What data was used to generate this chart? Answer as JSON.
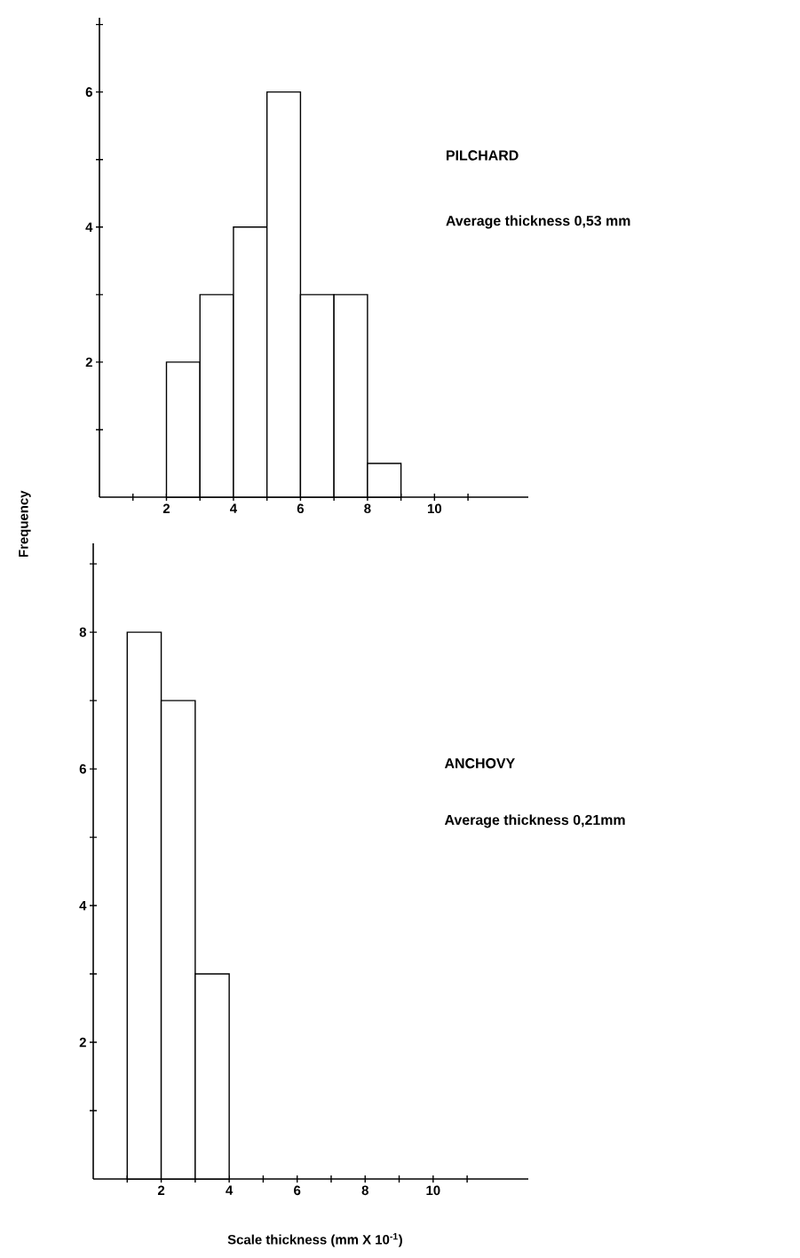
{
  "chart_data": [
    {
      "type": "histogram",
      "ylabel": "Frequency",
      "bins": [
        2,
        3,
        4,
        5,
        6,
        7,
        8,
        9
      ],
      "values": [
        2,
        3,
        4,
        6,
        3,
        3,
        0.5
      ],
      "xlim": [
        0,
        12.8
      ],
      "ylim": [
        0,
        7.1
      ],
      "xticks": [
        {
          "value": 1,
          "label": null
        },
        2,
        {
          "value": 3,
          "label": null
        },
        4,
        {
          "value": 5,
          "label": null
        },
        6,
        {
          "value": 7,
          "label": null
        },
        8,
        {
          "value": 9,
          "label": null
        },
        10,
        {
          "value": 11,
          "label": null
        }
      ],
      "yticks": [
        {
          "value": 1,
          "label": null
        },
        2,
        {
          "value": 3,
          "label": null
        },
        4,
        {
          "value": 5,
          "label": null
        },
        6,
        {
          "value": 7,
          "label": null
        }
      ],
      "annotations": [
        "PILCHARD",
        "Average  thickness  0,53 mm"
      ]
    },
    {
      "type": "histogram",
      "xlabel": "Scale  thickness  (mm X 10$^{-1}$)",
      "bins": [
        1,
        2,
        3,
        4
      ],
      "values": [
        8,
        7,
        3
      ],
      "xlim": [
        0,
        12.8
      ],
      "ylim": [
        0,
        9.3
      ],
      "xticks": [
        {
          "value": 1,
          "label": null
        },
        2,
        {
          "value": 3,
          "label": null
        },
        4,
        {
          "value": 5,
          "label": null
        },
        6,
        {
          "value": 7,
          "label": null
        },
        8,
        {
          "value": 9,
          "label": null
        },
        10,
        {
          "value": 11,
          "label": null
        }
      ],
      "yticks": [
        {
          "value": 1,
          "label": null
        },
        2,
        {
          "value": 3,
          "label": null
        },
        4,
        {
          "value": 5,
          "label": null
        },
        6,
        {
          "value": 7,
          "label": null
        },
        8,
        {
          "value": 9,
          "label": null
        }
      ],
      "annotations": [
        "ANCHOVY",
        "Average  thickness  0,21mm"
      ]
    }
  ]
}
